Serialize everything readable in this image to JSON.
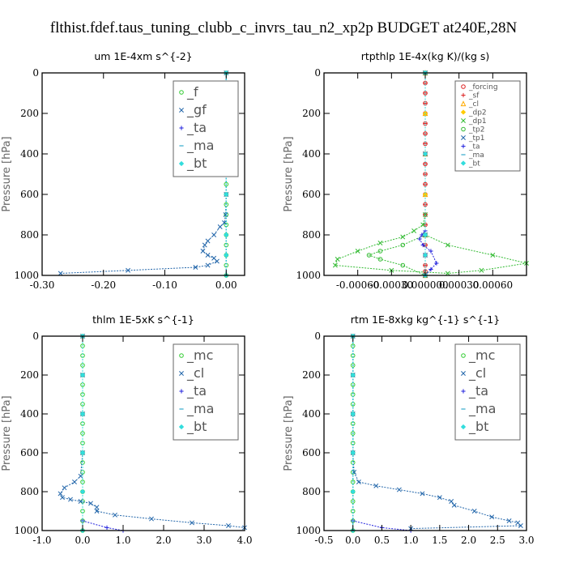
{
  "title": "flthist.fdef.taus_tuning_clubb_c_invrs_tau_n2_xp2p  BUDGET at240E,28N",
  "chart_data": [
    {
      "type": "line",
      "title": "um   1E-4xm  s^{-2}",
      "ylabel": "Pressure [hPa]",
      "xlim": [
        -0.3,
        0.03
      ],
      "ylim": [
        1000,
        0
      ],
      "xticks": [
        -0.3,
        -0.2,
        -0.1,
        0.0
      ],
      "xtick_labels": [
        "-0.30",
        "-0.20",
        "-0.10",
        "0.00"
      ],
      "yticks": [
        0,
        200,
        400,
        600,
        800,
        1000
      ],
      "ytick_labels": [
        "0",
        "200",
        "400",
        "600",
        "800",
        "1000"
      ],
      "legend_position": "top-right",
      "legend_size": "large",
      "series": [
        {
          "name": "_f",
          "color": "#33cc33",
          "marker": "circle",
          "x": [
            0,
            0,
            0,
            0,
            0,
            0,
            0,
            0,
            0,
            0,
            0,
            0,
            0,
            0,
            0,
            0,
            0,
            0,
            0,
            0,
            0
          ],
          "y": [
            0,
            50,
            100,
            150,
            200,
            250,
            300,
            350,
            400,
            450,
            500,
            550,
            600,
            650,
            700,
            750,
            800,
            850,
            900,
            950,
            1000
          ]
        },
        {
          "name": "_gf",
          "color": "#2266aa",
          "marker": "cross",
          "x": [
            0,
            0,
            0,
            0,
            -0.001,
            -0.003,
            -0.01,
            -0.02,
            -0.03,
            -0.035,
            -0.038,
            -0.03,
            -0.02,
            -0.015,
            -0.03,
            -0.05,
            -0.16,
            -0.27
          ],
          "y": [
            0,
            200,
            400,
            600,
            700,
            740,
            760,
            800,
            830,
            850,
            880,
            900,
            915,
            930,
            950,
            960,
            975,
            990
          ]
        },
        {
          "name": "_ta",
          "color": "#2222dd",
          "marker": "plus",
          "x": [
            0,
            0,
            0,
            0,
            0,
            0,
            0
          ],
          "y": [
            0,
            200,
            400,
            600,
            800,
            900,
            1000
          ]
        },
        {
          "name": "_ma",
          "color": "#33aacc",
          "marker": "dash",
          "x": [
            0,
            0,
            0,
            0,
            0,
            0,
            0
          ],
          "y": [
            0,
            200,
            400,
            600,
            800,
            900,
            1000
          ]
        },
        {
          "name": "_bt",
          "color": "#33dddd",
          "marker": "diamond",
          "x": [
            0,
            0,
            0,
            0,
            0,
            0,
            0
          ],
          "y": [
            0,
            200,
            400,
            600,
            800,
            900,
            1000
          ]
        }
      ]
    },
    {
      "type": "line",
      "title": "rtpthlp   1E-4x(kg K)/(kg s)",
      "ylabel": "Pressure [hPa]",
      "xlim": [
        -0.0009,
        0.0009
      ],
      "ylim": [
        1000,
        0
      ],
      "xticks": [
        -0.0006,
        -0.0003,
        0,
        0.0003,
        0.0006
      ],
      "xtick_labels": [
        "-0.00060",
        "-0.00030",
        "0.000000",
        "0.00030",
        "0.00060"
      ],
      "yticks": [
        0,
        200,
        400,
        600,
        800,
        1000
      ],
      "ytick_labels": [
        "0",
        "200",
        "400",
        "600",
        "800",
        "1000"
      ],
      "legend_position": "top-right",
      "legend_size": "small",
      "series": [
        {
          "name": "_forcing",
          "color": "#dd2222",
          "marker": "circle",
          "x": [
            0,
            0,
            0,
            0,
            0,
            0,
            0,
            0,
            0,
            0,
            0,
            0,
            0,
            0,
            0,
            0,
            0,
            0,
            0,
            0,
            0,
            0
          ],
          "y": [
            0,
            50,
            100,
            150,
            200,
            250,
            300,
            350,
            400,
            450,
            500,
            550,
            600,
            650,
            700,
            750,
            800,
            850,
            900,
            950,
            980,
            1000
          ]
        },
        {
          "name": "_sf",
          "color": "#dd2222",
          "marker": "plus",
          "x": [
            0,
            0,
            0,
            0,
            0,
            0,
            0,
            0,
            0,
            0,
            0,
            0,
            0,
            0,
            0,
            0,
            0,
            0,
            0,
            0,
            0
          ],
          "y": [
            0,
            50,
            100,
            150,
            200,
            250,
            300,
            350,
            400,
            450,
            500,
            550,
            600,
            650,
            700,
            750,
            800,
            850,
            900,
            950,
            1000
          ]
        },
        {
          "name": "_cl",
          "color": "#ffaa00",
          "marker": "triangle",
          "x": [
            0,
            0,
            0,
            0,
            0,
            0
          ],
          "y": [
            0,
            200,
            400,
            600,
            800,
            1000
          ]
        },
        {
          "name": "_dp2",
          "color": "#ffcc00",
          "marker": "diamond",
          "x": [
            0,
            0,
            0,
            0,
            0,
            0
          ],
          "y": [
            0,
            200,
            400,
            600,
            800,
            1000
          ]
        },
        {
          "name": "_dp1",
          "color": "#33bb33",
          "marker": "cross",
          "x": [
            0,
            0,
            0,
            -2e-05,
            -0.0001,
            -0.0002,
            -0.0004,
            -0.0006,
            -0.00078,
            -0.0008,
            -0.0003,
            0.0002,
            0.0005,
            0.0009,
            0.0006,
            0.0002,
            0
          ],
          "y": [
            0,
            400,
            700,
            750,
            780,
            810,
            840,
            880,
            920,
            950,
            975,
            990,
            975,
            940,
            900,
            850,
            800
          ]
        },
        {
          "name": "_tp2",
          "color": "#33bb33",
          "marker": "circle",
          "x": [
            0,
            0,
            -0.0002,
            -0.0004,
            -0.0005,
            -0.0004,
            -0.0002,
            0
          ],
          "y": [
            0,
            800,
            850,
            880,
            900,
            920,
            950,
            1000
          ]
        },
        {
          "name": "_tp1",
          "color": "#2266aa",
          "marker": "cross",
          "x": [
            0,
            0,
            0,
            0,
            0
          ],
          "y": [
            0,
            400,
            800,
            900,
            1000
          ]
        },
        {
          "name": "_ta",
          "color": "#2222dd",
          "marker": "plus",
          "x": [
            0,
            0,
            -3e-05,
            -5e-05,
            -2e-05,
            5e-05,
            0.0001,
            5e-05,
            0
          ],
          "y": [
            0,
            780,
            800,
            820,
            850,
            880,
            940,
            970,
            1000
          ]
        },
        {
          "name": "_ma",
          "color": "#33aacc",
          "marker": "dash",
          "x": [
            0,
            0,
            0,
            0,
            0
          ],
          "y": [
            0,
            400,
            800,
            900,
            1000
          ]
        },
        {
          "name": "_bt",
          "color": "#33dddd",
          "marker": "diamond",
          "x": [
            0,
            0,
            0,
            0,
            0
          ],
          "y": [
            0,
            400,
            800,
            900,
            1000
          ]
        }
      ]
    },
    {
      "type": "line",
      "title": "thlm   1E-5xK  s^{-1}",
      "ylabel": "Pressure [hPa]",
      "xlim": [
        -1.0,
        4.0
      ],
      "ylim": [
        1000,
        0
      ],
      "xticks": [
        -1.0,
        0.0,
        1.0,
        2.0,
        3.0,
        4.0
      ],
      "xtick_labels": [
        "-1.0",
        "0.0",
        "1.0",
        "2.0",
        "3.0",
        "4.0"
      ],
      "yticks": [
        0,
        200,
        400,
        600,
        800,
        1000
      ],
      "ytick_labels": [
        "0",
        "200",
        "400",
        "600",
        "800",
        "1000"
      ],
      "legend_position": "top-right",
      "legend_size": "large",
      "series": [
        {
          "name": "_mc",
          "color": "#33cc33",
          "marker": "circle",
          "x": [
            0,
            0,
            0,
            0,
            0,
            0,
            0,
            0,
            0,
            0,
            0,
            0,
            0,
            0,
            0,
            0,
            0,
            0,
            0,
            0,
            0
          ],
          "y": [
            0,
            50,
            100,
            150,
            200,
            250,
            300,
            350,
            400,
            450,
            500,
            550,
            600,
            650,
            700,
            750,
            800,
            850,
            900,
            950,
            1000
          ]
        },
        {
          "name": "_cl",
          "color": "#2266aa",
          "marker": "cross",
          "x": [
            0,
            0,
            0,
            0,
            -0.05,
            -0.2,
            -0.45,
            -0.55,
            -0.5,
            -0.3,
            -0.05,
            0.2,
            0.35,
            0.35,
            0.8,
            1.7,
            2.7,
            3.6,
            4.0
          ],
          "y": [
            0,
            200,
            400,
            600,
            720,
            750,
            780,
            810,
            830,
            840,
            850,
            860,
            880,
            900,
            920,
            940,
            960,
            975,
            985
          ]
        },
        {
          "name": "_ta",
          "color": "#2222dd",
          "marker": "plus",
          "x": [
            0,
            0,
            0,
            0,
            0,
            0,
            0.6,
            1.0
          ],
          "y": [
            0,
            200,
            400,
            600,
            800,
            950,
            985,
            1000
          ]
        },
        {
          "name": "_ma",
          "color": "#33aacc",
          "marker": "dash",
          "x": [
            0,
            0,
            0,
            0,
            0,
            0
          ],
          "y": [
            0,
            200,
            400,
            600,
            800,
            1000
          ]
        },
        {
          "name": "_bt",
          "color": "#33dddd",
          "marker": "diamond",
          "x": [
            0,
            0,
            0,
            0,
            0,
            0
          ],
          "y": [
            0,
            200,
            400,
            600,
            800,
            1000
          ]
        }
      ]
    },
    {
      "type": "line",
      "title": "rtm   1E-8xkg  kg^{-1}  s^{-1}",
      "ylabel": "Pressure [hPa]",
      "xlim": [
        -0.5,
        3.0
      ],
      "ylim": [
        1000,
        0
      ],
      "xticks": [
        -0.5,
        0.0,
        0.5,
        1.0,
        1.5,
        2.0,
        2.5,
        3.0
      ],
      "xtick_labels": [
        "-0.5",
        "0.0",
        "0.5",
        "1.0",
        "1.5",
        "2.0",
        "2.5",
        "3.0"
      ],
      "yticks": [
        0,
        200,
        400,
        600,
        800,
        1000
      ],
      "ytick_labels": [
        "0",
        "200",
        "400",
        "600",
        "800",
        "1000"
      ],
      "legend_position": "top-right",
      "legend_size": "large",
      "series": [
        {
          "name": "_mc",
          "color": "#33cc33",
          "marker": "circle",
          "x": [
            0,
            0,
            0,
            0,
            0,
            0,
            0,
            0,
            0,
            0,
            0,
            0,
            0,
            0,
            0,
            0,
            0,
            0,
            0,
            0,
            0
          ],
          "y": [
            0,
            50,
            100,
            150,
            200,
            250,
            300,
            350,
            400,
            450,
            500,
            550,
            600,
            650,
            700,
            750,
            800,
            850,
            900,
            950,
            1000
          ]
        },
        {
          "name": "_cl",
          "color": "#2266aa",
          "marker": "cross",
          "x": [
            0,
            0,
            0,
            0,
            0.02,
            0.1,
            0.4,
            0.8,
            1.2,
            1.5,
            1.7,
            1.75,
            2.1,
            2.4,
            2.7,
            2.85,
            2.9,
            1.0
          ],
          "y": [
            0,
            200,
            400,
            600,
            700,
            750,
            770,
            790,
            810,
            830,
            850,
            870,
            900,
            930,
            950,
            960,
            975,
            990
          ]
        },
        {
          "name": "_ta",
          "color": "#2222dd",
          "marker": "plus",
          "x": [
            0,
            0,
            0,
            0,
            0,
            0,
            0.5,
            1.0
          ],
          "y": [
            0,
            200,
            400,
            600,
            800,
            950,
            985,
            1000
          ]
        },
        {
          "name": "_ma",
          "color": "#33aacc",
          "marker": "dash",
          "x": [
            0,
            0,
            0,
            0,
            0,
            0
          ],
          "y": [
            0,
            200,
            400,
            600,
            800,
            1000
          ]
        },
        {
          "name": "_bt",
          "color": "#33dddd",
          "marker": "diamond",
          "x": [
            0,
            0,
            0,
            0,
            0,
            0
          ],
          "y": [
            0,
            200,
            400,
            600,
            800,
            1000
          ]
        }
      ]
    }
  ]
}
